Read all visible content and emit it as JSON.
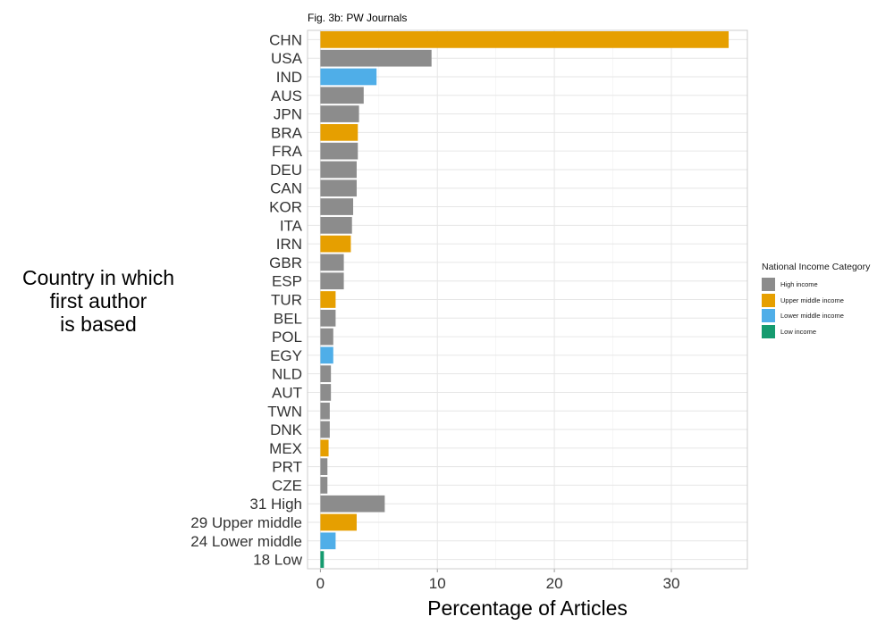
{
  "chart_data": {
    "type": "bar",
    "orientation": "horizontal",
    "title": "Fig. 3b: PW Journals",
    "xlabel": "Percentage of Articles",
    "ylabel": "Country in which\nfirst author\nis based",
    "xlim": [
      -1.1,
      36.5
    ],
    "xticks": [
      0,
      10,
      20,
      30
    ],
    "grid": true,
    "legend": {
      "title": "National Income Category",
      "placement": "right",
      "entries": [
        {
          "label": "High income",
          "color": "#8C8C8C"
        },
        {
          "label": "Upper middle income",
          "color": "#E69F00"
        },
        {
          "label": "Lower middle income",
          "color": "#4FAEE8"
        },
        {
          "label": "Low income",
          "color": "#159B6F"
        }
      ]
    },
    "categories": [
      "CHN",
      "USA",
      "IND",
      "AUS",
      "JPN",
      "BRA",
      "FRA",
      "DEU",
      "CAN",
      "KOR",
      "ITA",
      "IRN",
      "GBR",
      "ESP",
      "TUR",
      "BEL",
      "POL",
      "EGY",
      "NLD",
      "AUT",
      "TWN",
      "DNK",
      "MEX",
      "PRT",
      "CZE",
      "31 High",
      "29 Upper middle",
      "24 Lower middle",
      "18 Low"
    ],
    "values": [
      34.9,
      9.5,
      4.8,
      3.7,
      3.3,
      3.2,
      3.2,
      3.1,
      3.1,
      2.8,
      2.7,
      2.6,
      2.0,
      2.0,
      1.3,
      1.3,
      1.1,
      1.1,
      0.9,
      0.9,
      0.8,
      0.8,
      0.7,
      0.6,
      0.6,
      5.5,
      3.1,
      1.3,
      0.3
    ],
    "income": [
      "Upper middle income",
      "High income",
      "Lower middle income",
      "High income",
      "High income",
      "Upper middle income",
      "High income",
      "High income",
      "High income",
      "High income",
      "High income",
      "Upper middle income",
      "High income",
      "High income",
      "Upper middle income",
      "High income",
      "High income",
      "Lower middle income",
      "High income",
      "High income",
      "High income",
      "High income",
      "Upper middle income",
      "High income",
      "High income",
      "High income",
      "Upper middle income",
      "Lower middle income",
      "Low income"
    ]
  }
}
